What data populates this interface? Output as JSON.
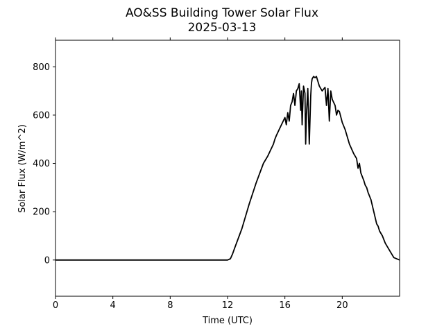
{
  "chart_data": {
    "type": "line",
    "title": "AO&SS Building Tower Solar Flux",
    "subtitle": "2025-03-13",
    "xlabel": "Time (UTC)",
    "ylabel": "Solar Flux (W/m^2)",
    "xlim": [
      0,
      24
    ],
    "ylim": [
      -150,
      910
    ],
    "xticks": [
      0,
      4,
      8,
      12,
      16,
      20
    ],
    "yticks": [
      0,
      200,
      400,
      600,
      800
    ],
    "grid": false,
    "legend": "none",
    "series": [
      {
        "color": "#000000",
        "x": [
          0,
          12.0,
          12.2,
          12.35,
          12.5,
          13.0,
          13.5,
          14.0,
          14.5,
          14.8,
          15.0,
          15.2,
          15.3,
          15.4,
          15.6,
          15.8,
          16.0,
          16.1,
          16.2,
          16.3,
          16.4,
          16.5,
          16.6,
          16.7,
          16.8,
          16.9,
          17.0,
          17.1,
          17.15,
          17.2,
          17.3,
          17.4,
          17.45,
          17.5,
          17.6,
          17.7,
          17.8,
          17.85,
          17.9,
          18.0,
          18.1,
          18.2,
          18.4,
          18.6,
          18.8,
          18.9,
          19.0,
          19.1,
          19.2,
          19.3,
          19.5,
          19.6,
          19.7,
          19.8,
          20.0,
          20.2,
          20.5,
          20.8,
          21.0,
          21.1,
          21.2,
          21.3,
          21.5,
          21.6,
          21.7,
          21.8,
          22.0,
          22.2,
          22.4,
          22.5,
          22.6,
          22.8,
          23.0,
          23.3,
          23.6,
          24.0
        ],
        "y": [
          0,
          0,
          5,
          25,
          50,
          130,
          230,
          320,
          400,
          430,
          455,
          480,
          500,
          515,
          540,
          565,
          590,
          560,
          610,
          575,
          640,
          655,
          690,
          640,
          700,
          710,
          730,
          620,
          700,
          560,
          720,
          690,
          480,
          600,
          710,
          480,
          680,
          730,
          750,
          760,
          755,
          760,
          720,
          700,
          715,
          640,
          710,
          575,
          700,
          665,
          640,
          600,
          620,
          615,
          570,
          540,
          480,
          440,
          420,
          380,
          400,
          360,
          330,
          310,
          300,
          280,
          250,
          200,
          150,
          140,
          120,
          100,
          70,
          40,
          10,
          0
        ]
      }
    ]
  }
}
